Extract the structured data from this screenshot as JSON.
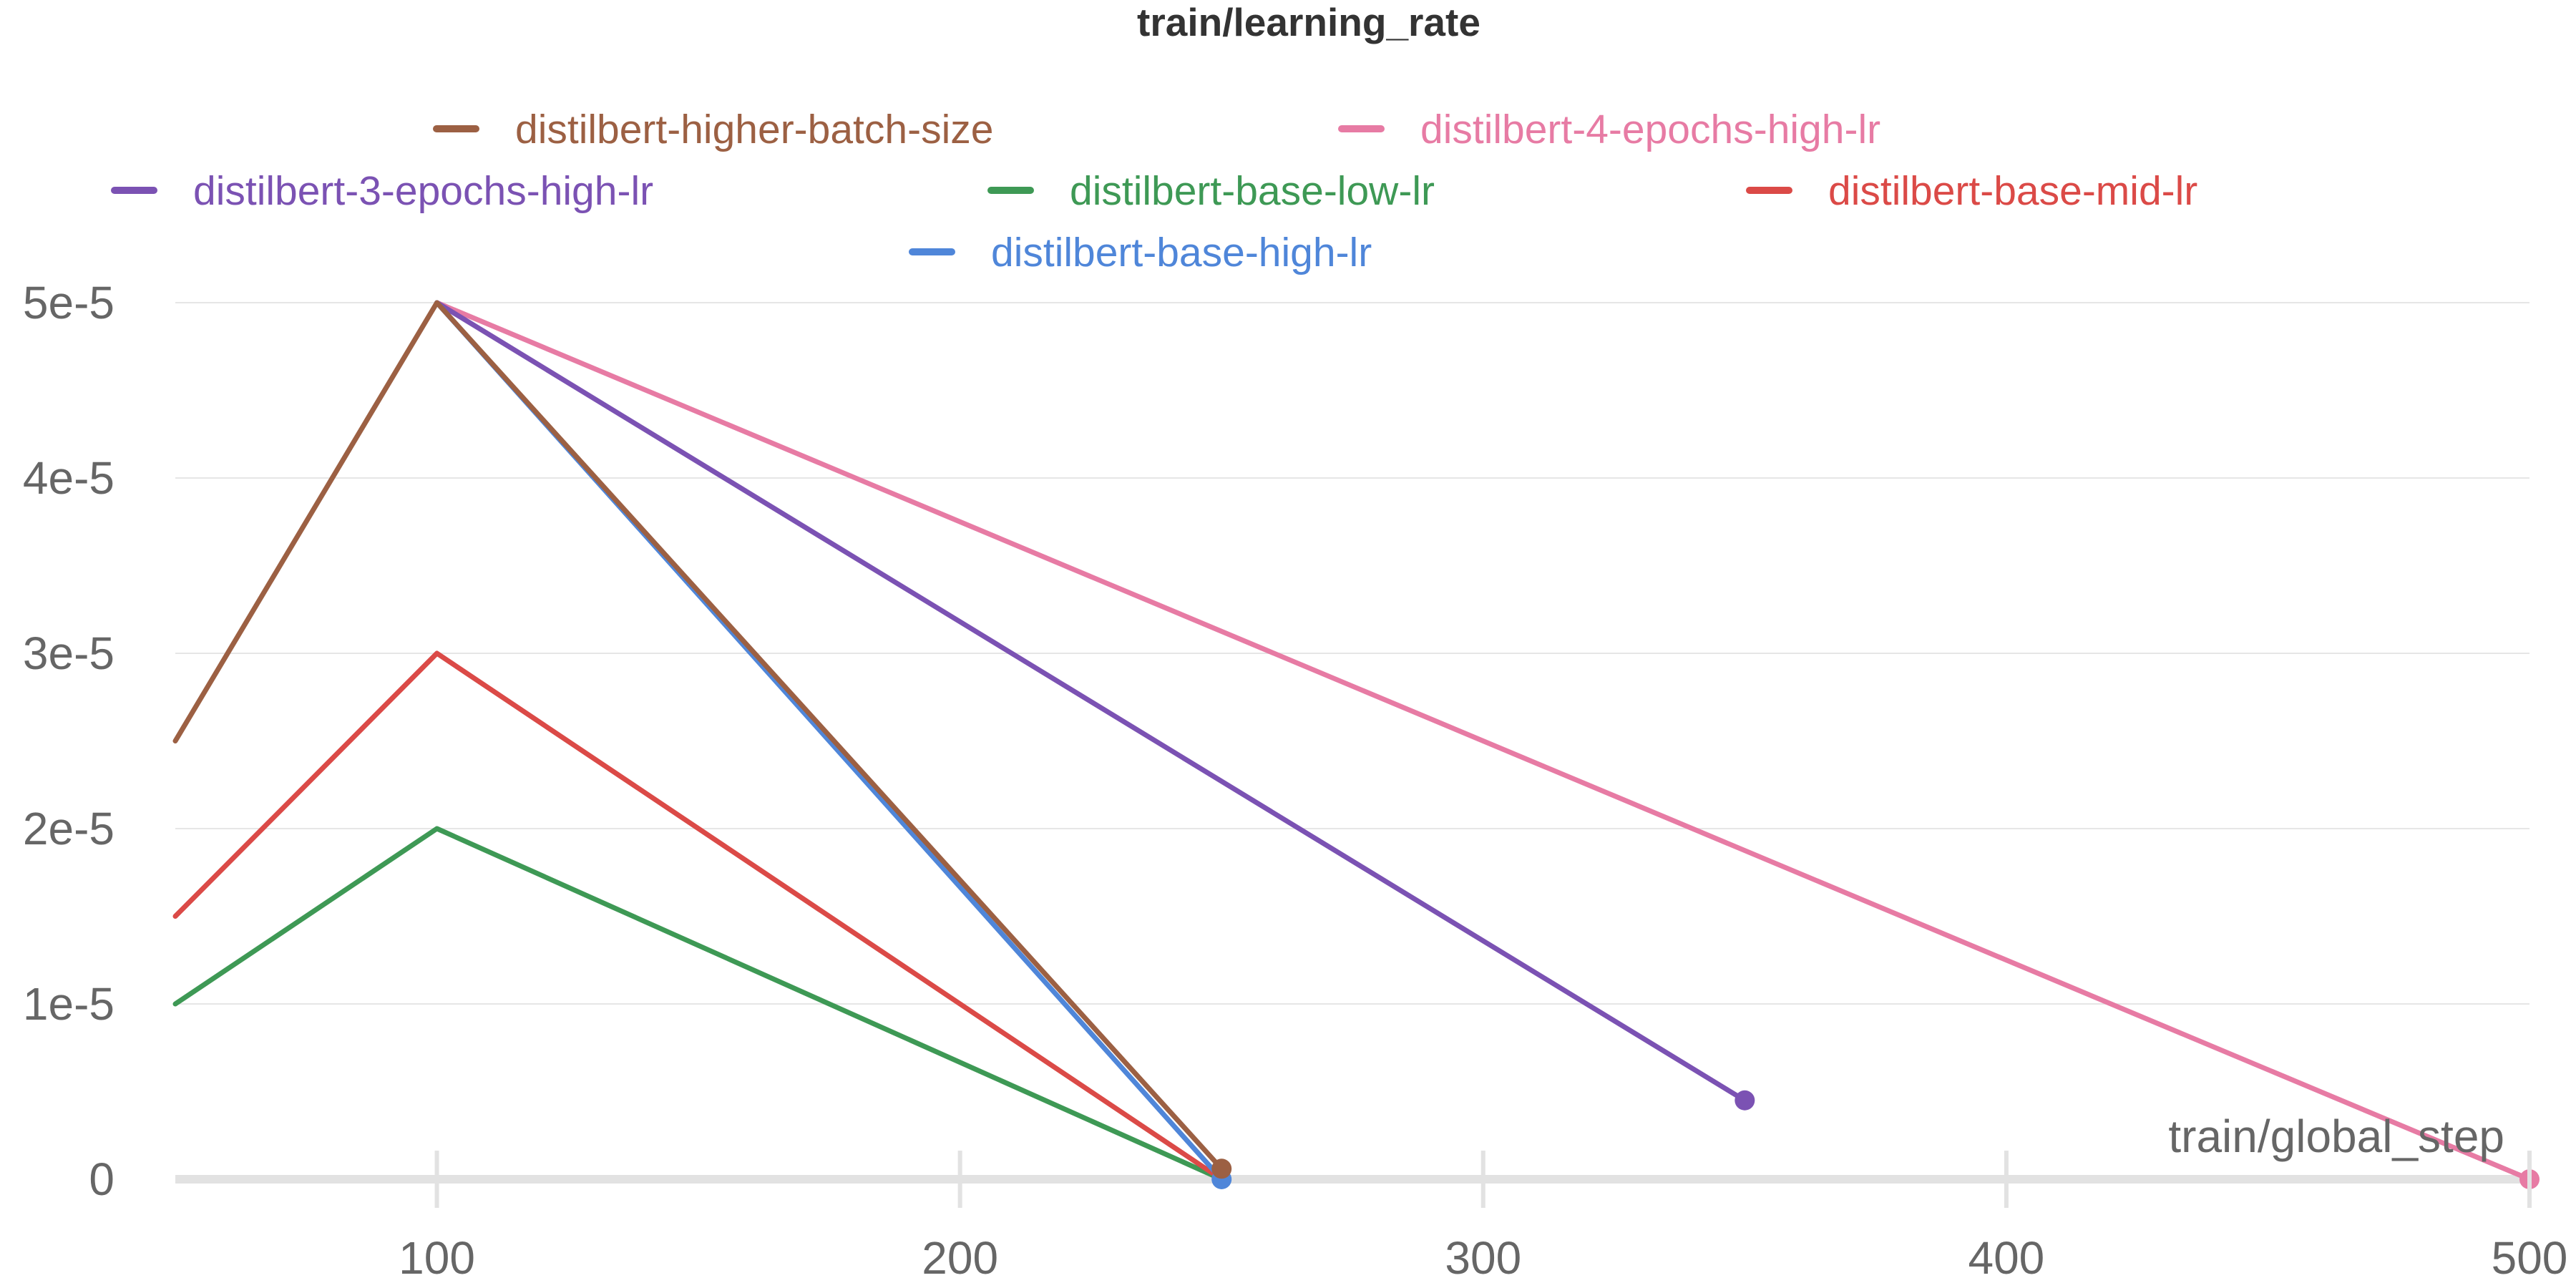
{
  "chart_data": {
    "type": "line",
    "title": "train/learning_rate",
    "xlabel": "train/global_step",
    "ylabel": "",
    "xlim": [
      50,
      500
    ],
    "ylim": [
      0,
      5e-05
    ],
    "x_ticks": [
      {
        "value": 100,
        "label": "100"
      },
      {
        "value": 200,
        "label": "200"
      },
      {
        "value": 300,
        "label": "300"
      },
      {
        "value": 400,
        "label": "400"
      },
      {
        "value": 500,
        "label": "500"
      }
    ],
    "y_ticks": [
      {
        "value": 0,
        "label": "0"
      },
      {
        "value": 1e-05,
        "label": "1e-5"
      },
      {
        "value": 2e-05,
        "label": "2e-5"
      },
      {
        "value": 3e-05,
        "label": "3e-5"
      },
      {
        "value": 4e-05,
        "label": "4e-5"
      },
      {
        "value": 5e-05,
        "label": "5e-5"
      }
    ],
    "grid": true,
    "legend_position": "top",
    "series": [
      {
        "name": "distilbert-4-epochs-high-lr",
        "color": "#e77ba4",
        "x": [
          100,
          500
        ],
        "y": [
          5e-05,
          0
        ],
        "end_marker": true
      },
      {
        "name": "distilbert-3-epochs-high-lr",
        "color": "#7b52b3",
        "x": [
          100,
          350
        ],
        "y": [
          5e-05,
          4.5e-06
        ],
        "end_marker": true
      },
      {
        "name": "distilbert-base-low-lr",
        "color": "#3e9955",
        "x": [
          50,
          100,
          250
        ],
        "y": [
          1e-05,
          2e-05,
          0
        ],
        "end_marker": false
      },
      {
        "name": "distilbert-base-mid-lr",
        "color": "#db4a47",
        "x": [
          50,
          100,
          250
        ],
        "y": [
          1.5e-05,
          3e-05,
          0
        ],
        "end_marker": false
      },
      {
        "name": "distilbert-base-high-lr",
        "color": "#4f86d9",
        "x": [
          100,
          250
        ],
        "y": [
          5e-05,
          0
        ],
        "end_marker": true
      },
      {
        "name": "distilbert-higher-batch-size",
        "color": "#9c6043",
        "x": [
          50,
          100,
          250
        ],
        "y": [
          2.5e-05,
          5e-05,
          6e-07
        ],
        "end_marker": true
      }
    ]
  }
}
